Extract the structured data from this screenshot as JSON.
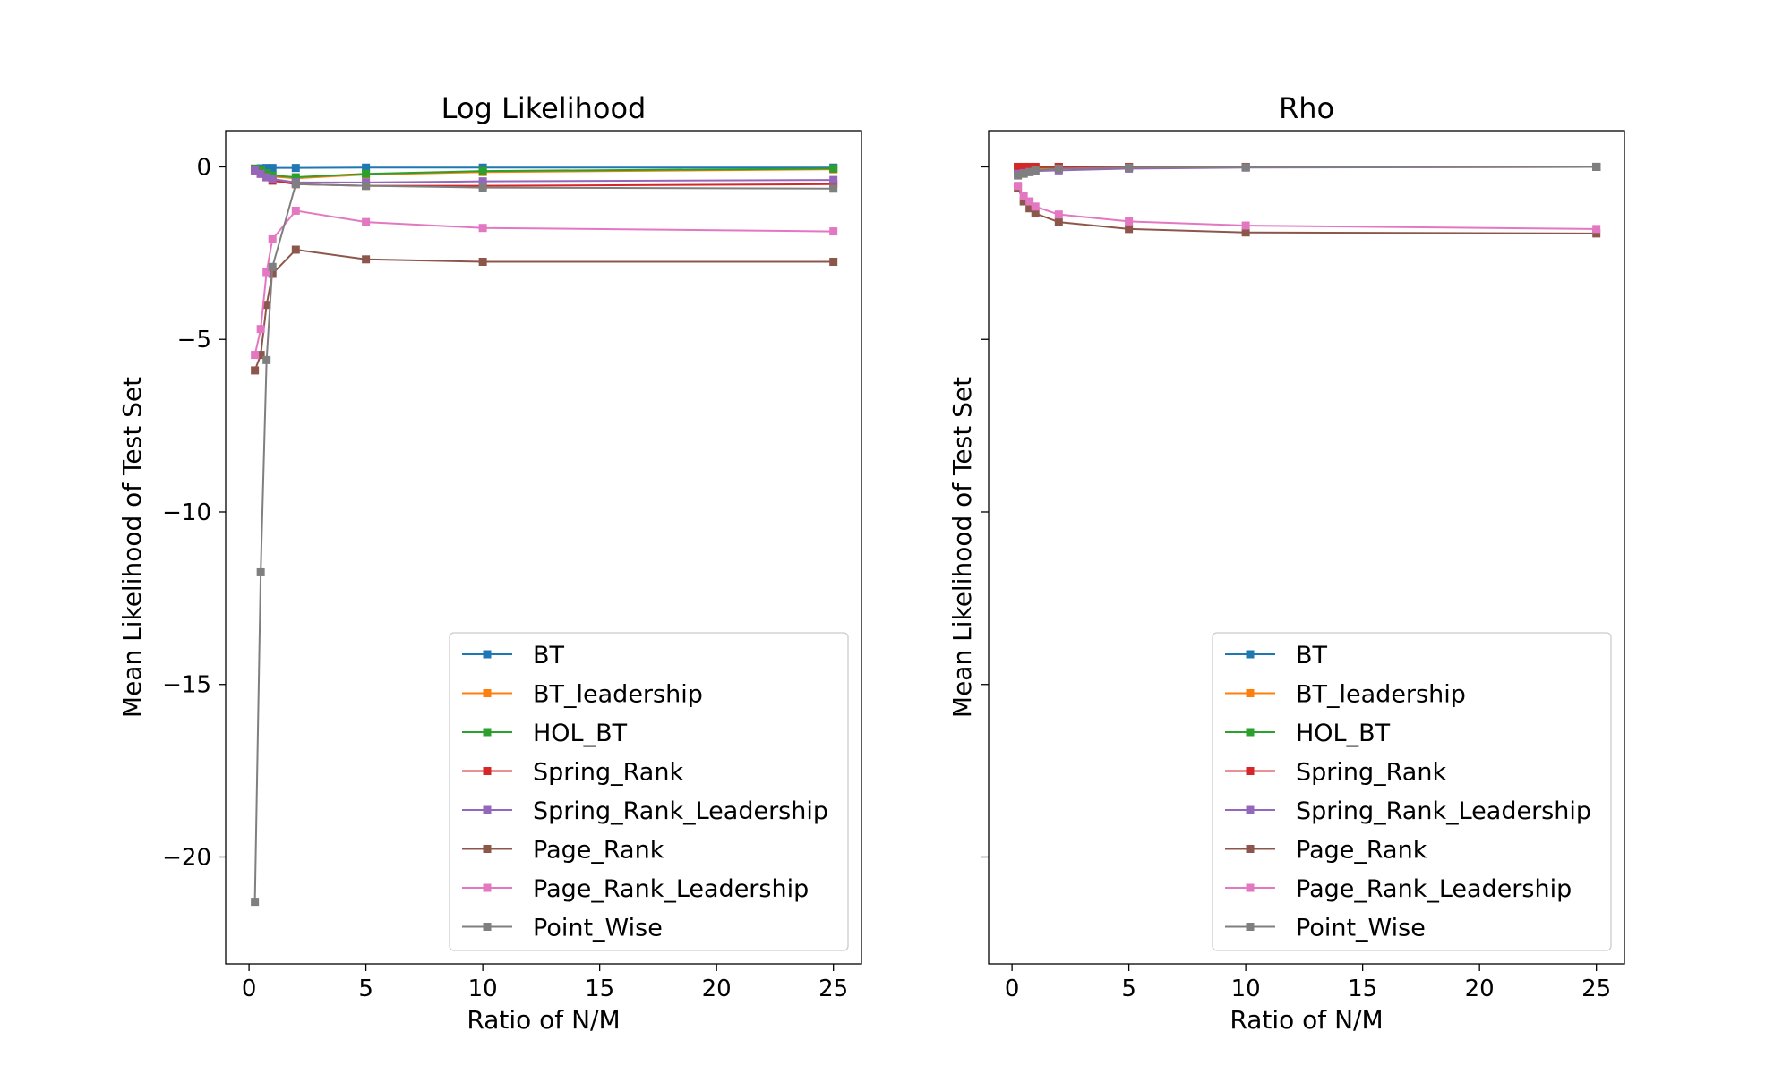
{
  "chart_data": [
    {
      "type": "line",
      "title": "Log Likelihood",
      "xlabel": "Ratio of N/M",
      "ylabel": "Mean Likelihood of Test Set",
      "xlim": [
        -1,
        26.2
      ],
      "ylim": [
        -23.1,
        1.05
      ],
      "xticks": [
        0,
        5,
        10,
        15,
        20,
        25
      ],
      "yticks": [
        0,
        -5,
        -10,
        -15,
        -20
      ],
      "show_yticklabels": true,
      "grid": false,
      "legend": "lower-right",
      "x": [
        0.25,
        0.5,
        0.75,
        1,
        2,
        5,
        10,
        25
      ],
      "series": [
        {
          "name": "BT",
          "color": "#1f77b4",
          "values": [
            -0.05,
            -0.04,
            -0.03,
            -0.03,
            -0.03,
            -0.02,
            -0.02,
            -0.02
          ]
        },
        {
          "name": "BT_leadership",
          "color": "#ff7f0e",
          "values": [
            -0.05,
            -0.1,
            -0.2,
            -0.28,
            -0.33,
            -0.22,
            -0.15,
            -0.07
          ]
        },
        {
          "name": "HOL_BT",
          "color": "#2ca02c",
          "values": [
            -0.05,
            -0.1,
            -0.18,
            -0.25,
            -0.3,
            -0.2,
            -0.12,
            -0.05
          ]
        },
        {
          "name": "Spring_Rank",
          "color": "#d62728",
          "values": [
            -0.1,
            -0.2,
            -0.3,
            -0.4,
            -0.5,
            -0.55,
            -0.55,
            -0.5
          ]
        },
        {
          "name": "Spring_Rank_Leadership",
          "color": "#9467bd",
          "values": [
            -0.1,
            -0.2,
            -0.3,
            -0.35,
            -0.45,
            -0.45,
            -0.42,
            -0.38
          ]
        },
        {
          "name": "Page_Rank",
          "color": "#8c564b",
          "values": [
            -5.9,
            -5.45,
            -4.0,
            -3.1,
            -2.4,
            -2.68,
            -2.75,
            -2.75
          ]
        },
        {
          "name": "Page_Rank_Leadership",
          "color": "#e377c2",
          "values": [
            -5.45,
            -4.7,
            -3.05,
            -2.1,
            -1.27,
            -1.6,
            -1.77,
            -1.87
          ]
        },
        {
          "name": "Point_Wise",
          "color": "#7f7f7f",
          "values": [
            -21.3,
            -11.75,
            -5.6,
            -2.9,
            -0.5,
            -0.55,
            -0.6,
            -0.63
          ]
        }
      ]
    },
    {
      "type": "line",
      "title": "Rho",
      "xlabel": "Ratio of N/M",
      "ylabel": "Mean Likelihood of Test Set",
      "xlim": [
        -1,
        26.2
      ],
      "ylim": [
        -23.1,
        1.05
      ],
      "xticks": [
        0,
        5,
        10,
        15,
        20,
        25
      ],
      "yticks": [
        0,
        -5,
        -10,
        -15,
        -20
      ],
      "show_yticklabels": false,
      "grid": false,
      "legend": "lower-right",
      "x": [
        0.25,
        0.5,
        0.75,
        1,
        2,
        5,
        10,
        25
      ],
      "series": [
        {
          "name": "BT",
          "color": "#1f77b4",
          "values": [
            0,
            0,
            0,
            0,
            0,
            0,
            0,
            0
          ]
        },
        {
          "name": "BT_leadership",
          "color": "#ff7f0e",
          "values": [
            -0.05,
            -0.05,
            -0.05,
            -0.05,
            -0.03,
            -0.02,
            -0.01,
            0
          ]
        },
        {
          "name": "HOL_BT",
          "color": "#2ca02c",
          "values": [
            -0.05,
            -0.04,
            -0.03,
            -0.02,
            -0.01,
            -0.01,
            0,
            0
          ]
        },
        {
          "name": "Spring_Rank",
          "color": "#d62728",
          "values": [
            0,
            0,
            0,
            0,
            0,
            0,
            0,
            0
          ]
        },
        {
          "name": "Spring_Rank_Leadership",
          "color": "#9467bd",
          "values": [
            -0.2,
            -0.18,
            -0.15,
            -0.12,
            -0.1,
            -0.05,
            -0.02,
            0
          ]
        },
        {
          "name": "Page_Rank",
          "color": "#8c564b",
          "values": [
            -0.6,
            -1.0,
            -1.2,
            -1.35,
            -1.6,
            -1.8,
            -1.9,
            -1.93
          ]
        },
        {
          "name": "Page_Rank_Leadership",
          "color": "#e377c2",
          "values": [
            -0.55,
            -0.85,
            -1.0,
            -1.15,
            -1.38,
            -1.58,
            -1.7,
            -1.8
          ]
        },
        {
          "name": "Point_Wise",
          "color": "#7f7f7f",
          "values": [
            -0.25,
            -0.2,
            -0.15,
            -0.1,
            -0.05,
            -0.02,
            -0.01,
            0
          ]
        }
      ]
    }
  ]
}
